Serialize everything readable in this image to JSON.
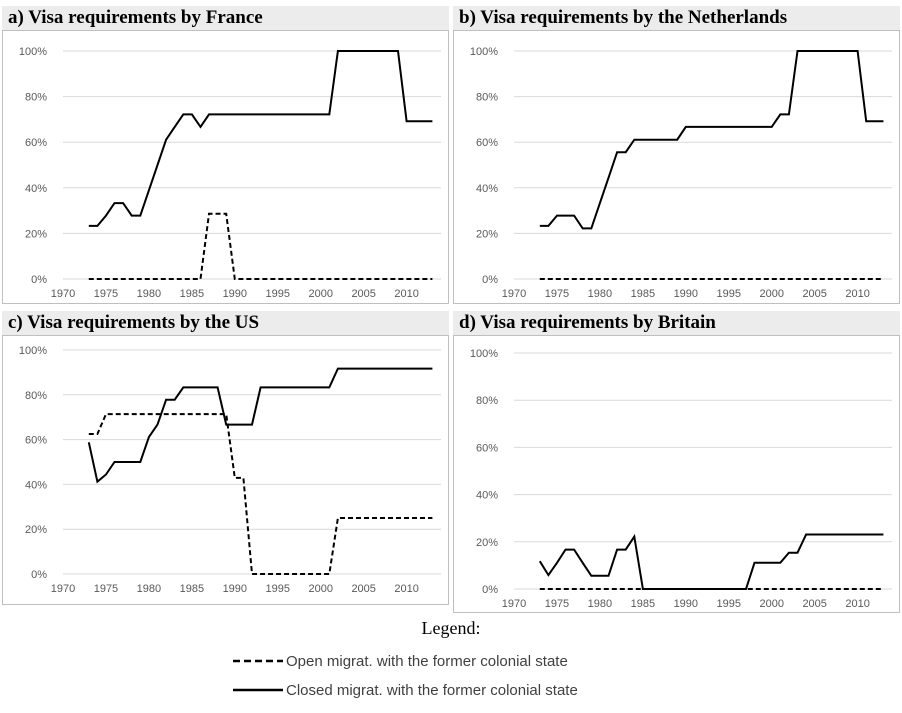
{
  "chart_data": [
    {
      "type": "line",
      "title": "a) Visa requirements by France",
      "x": [
        1973,
        1974,
        1975,
        1976,
        1977,
        1978,
        1979,
        1980,
        1981,
        1982,
        1983,
        1984,
        1985,
        1986,
        1987,
        1988,
        1989,
        1990,
        1991,
        1992,
        1993,
        1994,
        1995,
        1996,
        1997,
        1998,
        1999,
        2000,
        2001,
        2002,
        2003,
        2004,
        2005,
        2006,
        2007,
        2008,
        2009,
        2010,
        2011,
        2012,
        2013
      ],
      "series": [
        {
          "name": "Open migrat. with the former colonial state",
          "style": "dashed",
          "values": [
            0,
            0,
            0,
            0,
            0,
            0,
            0,
            0,
            0,
            0,
            0,
            0,
            0,
            0,
            28.6,
            28.6,
            28.6,
            0,
            0,
            0,
            0,
            0,
            0,
            0,
            0,
            0,
            0,
            0,
            0,
            0,
            0,
            0,
            0,
            0,
            0,
            0,
            0,
            0,
            0,
            0,
            0
          ]
        },
        {
          "name": "Closed migrat. with the former colonial state",
          "style": "solid",
          "values": [
            23.3,
            23.3,
            27.8,
            33.3,
            33.3,
            27.8,
            27.8,
            38.9,
            50,
            61.1,
            66.7,
            72.2,
            72.2,
            66.7,
            72.2,
            72.2,
            72.2,
            72.2,
            72.2,
            72.2,
            72.2,
            72.2,
            72.2,
            72.2,
            72.2,
            72.2,
            72.2,
            72.2,
            72.2,
            100,
            100,
            100,
            100,
            100,
            100,
            100,
            100,
            69.2,
            69.2,
            69.2,
            69.2
          ]
        }
      ],
      "xlim": [
        1970,
        2014
      ],
      "xticks": [
        "1970",
        "1975",
        "1980",
        "1985",
        "1990",
        "1995",
        "2000",
        "2005",
        "2010"
      ],
      "ylim": [
        0,
        100
      ],
      "yticks": [
        "0%",
        "20%",
        "40%",
        "60%",
        "80%",
        "100%"
      ],
      "grid": true
    },
    {
      "type": "line",
      "title": "b) Visa requirements by the Netherlands",
      "x": [
        1973,
        1974,
        1975,
        1976,
        1977,
        1978,
        1979,
        1980,
        1981,
        1982,
        1983,
        1984,
        1985,
        1986,
        1987,
        1988,
        1989,
        1990,
        1991,
        1992,
        1993,
        1994,
        1995,
        1996,
        1997,
        1998,
        1999,
        2000,
        2001,
        2002,
        2003,
        2004,
        2005,
        2006,
        2007,
        2008,
        2009,
        2010,
        2011,
        2012,
        2013
      ],
      "series": [
        {
          "name": "Open migrat. with the former colonial state",
          "style": "dashed",
          "values": [
            0,
            0,
            0,
            0,
            0,
            0,
            0,
            0,
            0,
            0,
            0,
            0,
            0,
            0,
            0,
            0,
            0,
            0,
            0,
            0,
            0,
            0,
            0,
            0,
            0,
            0,
            0,
            0,
            0,
            0,
            0,
            0,
            0,
            0,
            0,
            0,
            0,
            0,
            0,
            0,
            0
          ]
        },
        {
          "name": "Closed migrat. with the former colonial state",
          "style": "solid",
          "values": [
            23.3,
            23.3,
            27.8,
            27.8,
            27.8,
            22.2,
            22.2,
            33.3,
            44.4,
            55.6,
            55.6,
            61.1,
            61.1,
            61.1,
            61.1,
            61.1,
            61.1,
            66.7,
            66.7,
            66.7,
            66.7,
            66.7,
            66.7,
            66.7,
            66.7,
            66.7,
            66.7,
            66.7,
            72.2,
            72.2,
            100,
            100,
            100,
            100,
            100,
            100,
            100,
            100,
            69.2,
            69.2,
            69.2
          ]
        }
      ],
      "xlim": [
        1970,
        2014
      ],
      "xticks": [
        "1970",
        "1975",
        "1980",
        "1985",
        "1990",
        "1995",
        "2000",
        "2005",
        "2010"
      ],
      "ylim": [
        0,
        100
      ],
      "yticks": [
        "0%",
        "20%",
        "40%",
        "60%",
        "80%",
        "100%"
      ],
      "grid": true
    },
    {
      "type": "line",
      "title": "c) Visa requirements by the US",
      "x": [
        1973,
        1974,
        1975,
        1976,
        1977,
        1978,
        1979,
        1980,
        1981,
        1982,
        1983,
        1984,
        1985,
        1986,
        1987,
        1988,
        1989,
        1990,
        1991,
        1992,
        1993,
        1994,
        1995,
        1996,
        1997,
        1998,
        1999,
        2000,
        2001,
        2002,
        2003,
        2004,
        2005,
        2006,
        2007,
        2008,
        2009,
        2010,
        2011,
        2012,
        2013
      ],
      "series": [
        {
          "name": "Open migrat. with the former colonial state",
          "style": "dashed",
          "values": [
            62.5,
            62.5,
            71.4,
            71.4,
            71.4,
            71.4,
            71.4,
            71.4,
            71.4,
            71.4,
            71.4,
            71.4,
            71.4,
            71.4,
            71.4,
            71.4,
            71.4,
            42.9,
            42.9,
            0,
            0,
            0,
            0,
            0,
            0,
            0,
            0,
            0,
            0,
            25,
            25,
            25,
            25,
            25,
            25,
            25,
            25,
            25,
            25,
            25,
            25
          ]
        },
        {
          "name": "Closed migrat. with the former colonial state",
          "style": "solid",
          "values": [
            58.8,
            41.2,
            44.4,
            50,
            50,
            50,
            50,
            61.1,
            66.7,
            77.8,
            77.8,
            83.3,
            83.3,
            83.3,
            83.3,
            83.3,
            66.7,
            66.7,
            66.7,
            66.7,
            83.3,
            83.3,
            83.3,
            83.3,
            83.3,
            83.3,
            83.3,
            83.3,
            83.3,
            91.7,
            91.7,
            91.7,
            91.7,
            91.7,
            91.7,
            91.7,
            91.7,
            91.7,
            91.7,
            91.7,
            91.7
          ]
        }
      ],
      "xlim": [
        1970,
        2014
      ],
      "xticks": [
        "1970",
        "1975",
        "1980",
        "1985",
        "1990",
        "1995",
        "2000",
        "2005",
        "2010"
      ],
      "ylim": [
        0,
        100
      ],
      "yticks": [
        "0%",
        "20%",
        "40%",
        "60%",
        "80%",
        "100%"
      ],
      "grid": true
    },
    {
      "type": "line",
      "title": "d) Visa requirements by Britain",
      "x": [
        1973,
        1974,
        1975,
        1976,
        1977,
        1978,
        1979,
        1980,
        1981,
        1982,
        1983,
        1984,
        1985,
        1986,
        1987,
        1988,
        1989,
        1990,
        1991,
        1992,
        1993,
        1994,
        1995,
        1996,
        1997,
        1998,
        1999,
        2000,
        2001,
        2002,
        2003,
        2004,
        2005,
        2006,
        2007,
        2008,
        2009,
        2010,
        2011,
        2012,
        2013
      ],
      "series": [
        {
          "name": "Open migrat. with the former colonial state",
          "style": "dashed",
          "values": [
            0,
            0,
            0,
            0,
            0,
            0,
            0,
            0,
            0,
            0,
            0,
            0,
            0,
            0,
            0,
            0,
            0,
            0,
            0,
            0,
            0,
            0,
            0,
            0,
            0,
            0,
            0,
            0,
            0,
            0,
            0,
            0,
            0,
            0,
            0,
            0,
            0,
            0,
            0,
            0,
            0
          ]
        },
        {
          "name": "Closed migrat. with the former colonial state",
          "style": "solid",
          "values": [
            11.8,
            5.9,
            11.1,
            16.7,
            16.7,
            11.1,
            5.6,
            5.6,
            5.6,
            16.7,
            16.7,
            22.2,
            0,
            0,
            0,
            0,
            0,
            0,
            0,
            0,
            0,
            0,
            0,
            0,
            0,
            11.1,
            11.1,
            11.1,
            11.1,
            15.4,
            15.4,
            23.1,
            23.1,
            23.1,
            23.1,
            23.1,
            23.1,
            23.1,
            23.1,
            23.1,
            23.1
          ]
        }
      ],
      "xlim": [
        1970,
        2014
      ],
      "xticks": [
        "1970",
        "1975",
        "1980",
        "1985",
        "1990",
        "1995",
        "2000",
        "2005",
        "2010"
      ],
      "ylim": [
        0,
        100
      ],
      "yticks": [
        "0%",
        "20%",
        "40%",
        "60%",
        "80%",
        "100%"
      ],
      "grid": true
    }
  ],
  "legend": {
    "title": "Legend:",
    "entries": [
      {
        "label": "Open migrat.  with the former colonial state",
        "style": "dashed"
      },
      {
        "label": "Closed migrat.  with the former colonial state",
        "style": "solid"
      }
    ]
  }
}
